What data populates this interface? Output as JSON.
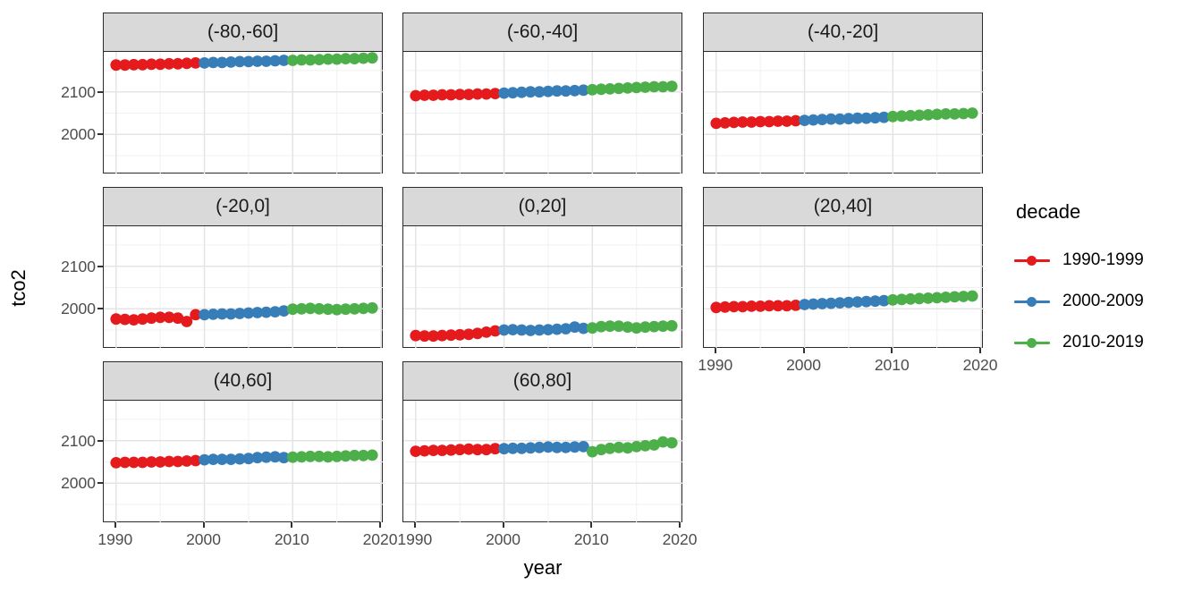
{
  "chart_data": {
    "type": "scatter",
    "title": "",
    "xlabel": "year",
    "ylabel": "tco2",
    "x_ticks": [
      1990,
      2000,
      2010,
      2020
    ],
    "x_minor_ticks": [
      1995,
      2005,
      2015
    ],
    "y_ticks": [
      2000,
      2100
    ],
    "y_minor_ticks": [
      1950,
      2050,
      2150
    ],
    "x_range": [
      1988.6,
      2020.3
    ],
    "y_range": [
      1908,
      2194
    ],
    "grid": true,
    "panel_bg": "#ffffff",
    "grid_major_color": "#e4e4e4",
    "grid_minor_color": "#f1f1f1",
    "strip_bg": "#d9d9d9",
    "legend": {
      "title": "decade",
      "position": "right",
      "entries": [
        {
          "label": "1990-1999",
          "color": "#E41A1C"
        },
        {
          "label": "2000-2009",
          "color": "#377EB8"
        },
        {
          "label": "2010-2019",
          "color": "#4DAF4A"
        }
      ]
    },
    "years": [
      1990,
      1991,
      1992,
      1993,
      1994,
      1995,
      1996,
      1997,
      1998,
      1999,
      2000,
      2001,
      2002,
      2003,
      2004,
      2005,
      2006,
      2007,
      2008,
      2009,
      2010,
      2011,
      2012,
      2013,
      2014,
      2015,
      2016,
      2017,
      2018,
      2019
    ],
    "facets": [
      {
        "label": "(-80,-60]",
        "series": [
          {
            "name": "1990-1999",
            "values": [
              2163,
              2163,
              2164,
              2164,
              2165,
              2165,
              2166,
              2166,
              2167,
              2168
            ]
          },
          {
            "name": "2000-2009",
            "values": [
              2168,
              2169,
              2169,
              2170,
              2171,
              2171,
              2172,
              2172,
              2173,
              2174
            ]
          },
          {
            "name": "2010-2019",
            "values": [
              2174,
              2175,
              2175,
              2176,
              2177,
              2177,
              2178,
              2178,
              2179,
              2180
            ]
          }
        ]
      },
      {
        "label": "(-60,-40]",
        "series": [
          {
            "name": "1990-1999",
            "values": [
              2091,
              2092,
              2092,
              2093,
              2093,
              2094,
              2094,
              2095,
              2095,
              2096
            ]
          },
          {
            "name": "2000-2009",
            "values": [
              2097,
              2098,
              2099,
              2100,
              2100,
              2101,
              2102,
              2102,
              2103,
              2104
            ]
          },
          {
            "name": "2010-2019",
            "values": [
              2105,
              2106,
              2107,
              2108,
              2109,
              2110,
              2111,
              2112,
              2112,
              2113
            ]
          }
        ]
      },
      {
        "label": "(-40,-20]",
        "series": [
          {
            "name": "1990-1999",
            "values": [
              2026,
              2027,
              2028,
              2029,
              2029,
              2030,
              2030,
              2031,
              2031,
              2032
            ]
          },
          {
            "name": "2000-2009",
            "values": [
              2033,
              2034,
              2035,
              2036,
              2036,
              2037,
              2038,
              2038,
              2039,
              2040
            ]
          },
          {
            "name": "2010-2019",
            "values": [
              2042,
              2043,
              2044,
              2045,
              2046,
              2047,
              2048,
              2048,
              2049,
              2050
            ]
          }
        ]
      },
      {
        "label": "(-20,0]",
        "series": [
          {
            "name": "1990-1999",
            "values": [
              1976,
              1975,
              1974,
              1976,
              1978,
              1980,
              1980,
              1978,
              1970,
              1986
            ]
          },
          {
            "name": "2000-2009",
            "values": [
              1986,
              1987,
              1988,
              1988,
              1989,
              1990,
              1991,
              1992,
              1993,
              1995
            ]
          },
          {
            "name": "2010-2019",
            "values": [
              1999,
              2000,
              2001,
              2000,
              1999,
              1998,
              1999,
              2000,
              2001,
              2002
            ]
          }
        ]
      },
      {
        "label": "(0,20]",
        "series": [
          {
            "name": "1990-1999",
            "values": [
              1937,
              1936,
              1936,
              1937,
              1938,
              1939,
              1940,
              1942,
              1945,
              1948
            ]
          },
          {
            "name": "2000-2009",
            "values": [
              1950,
              1951,
              1950,
              1949,
              1950,
              1951,
              1952,
              1953,
              1957,
              1954
            ]
          },
          {
            "name": "2010-2019",
            "values": [
              1955,
              1958,
              1959,
              1959,
              1957,
              1955,
              1957,
              1958,
              1959,
              1960
            ]
          }
        ]
      },
      {
        "label": "(20,40]",
        "series": [
          {
            "name": "1990-1999",
            "values": [
              2003,
              2004,
              2005,
              2005,
              2006,
              2006,
              2007,
              2007,
              2007,
              2008
            ]
          },
          {
            "name": "2000-2009",
            "values": [
              2010,
              2011,
              2012,
              2013,
              2014,
              2015,
              2016,
              2017,
              2018,
              2019
            ]
          },
          {
            "name": "2010-2019",
            "values": [
              2021,
              2022,
              2023,
              2024,
              2025,
              2026,
              2027,
              2028,
              2029,
              2030
            ]
          }
        ]
      },
      {
        "label": "(40,60]",
        "series": [
          {
            "name": "1990-1999",
            "values": [
              2048,
              2049,
              2049,
              2049,
              2050,
              2050,
              2051,
              2051,
              2052,
              2053
            ]
          },
          {
            "name": "2000-2009",
            "values": [
              2055,
              2056,
              2056,
              2056,
              2057,
              2058,
              2060,
              2061,
              2062,
              2060
            ]
          },
          {
            "name": "2010-2019",
            "values": [
              2061,
              2062,
              2063,
              2063,
              2062,
              2063,
              2064,
              2065,
              2065,
              2066
            ]
          }
        ]
      },
      {
        "label": "(60,80]",
        "series": [
          {
            "name": "1990-1999",
            "values": [
              2075,
              2076,
              2077,
              2077,
              2078,
              2079,
              2080,
              2079,
              2079,
              2081
            ]
          },
          {
            "name": "2000-2009",
            "values": [
              2081,
              2082,
              2082,
              2083,
              2084,
              2085,
              2084,
              2084,
              2085,
              2086
            ]
          },
          {
            "name": "2010-2019",
            "values": [
              2074,
              2079,
              2082,
              2084,
              2083,
              2086,
              2088,
              2090,
              2097,
              2095
            ]
          }
        ]
      }
    ]
  }
}
